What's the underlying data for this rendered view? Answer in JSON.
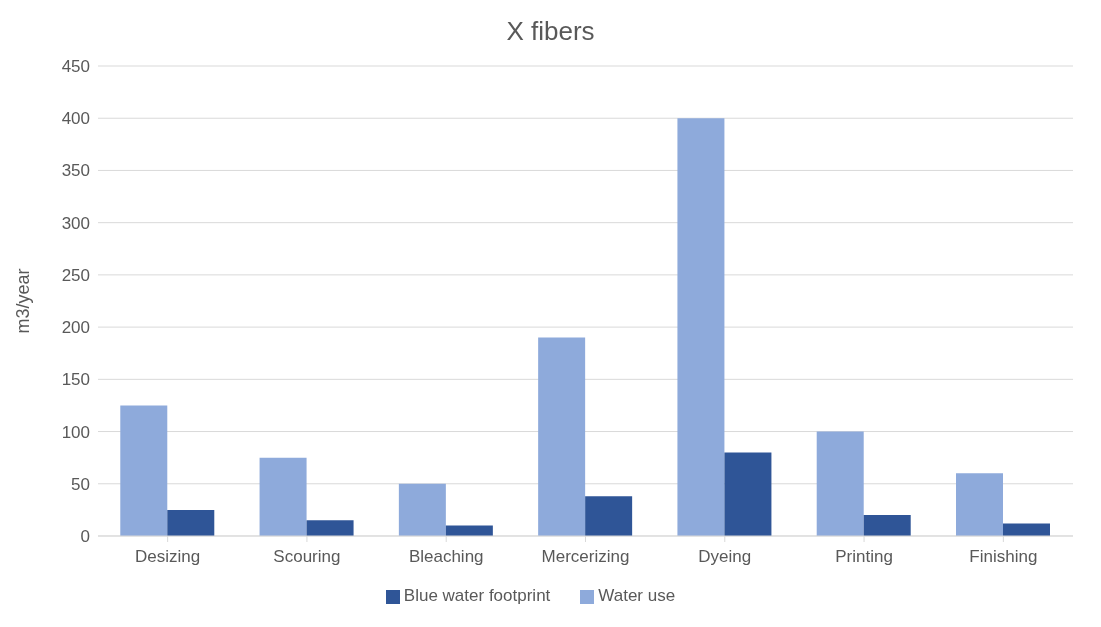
{
  "chart_data": {
    "type": "bar",
    "title": "X fibers",
    "ylabel": "m3/year",
    "categories": [
      "Desizing",
      "Scouring",
      "Bleaching",
      "Mercerizing",
      "Dyeing",
      "Printing",
      "Finishing"
    ],
    "series": [
      {
        "name": "Water use",
        "color": "#8eaadb",
        "values": [
          125,
          75,
          50,
          190,
          400,
          100,
          60
        ]
      },
      {
        "name": "Blue water footprint",
        "color": "#2f5597",
        "values": [
          25,
          15,
          10,
          38,
          80,
          20,
          12
        ]
      }
    ],
    "ylim": [
      0,
      450
    ],
    "yticks": [
      0,
      50,
      100,
      150,
      200,
      250,
      300,
      350,
      400,
      450
    ],
    "grid": "y",
    "legend": "bottom"
  }
}
